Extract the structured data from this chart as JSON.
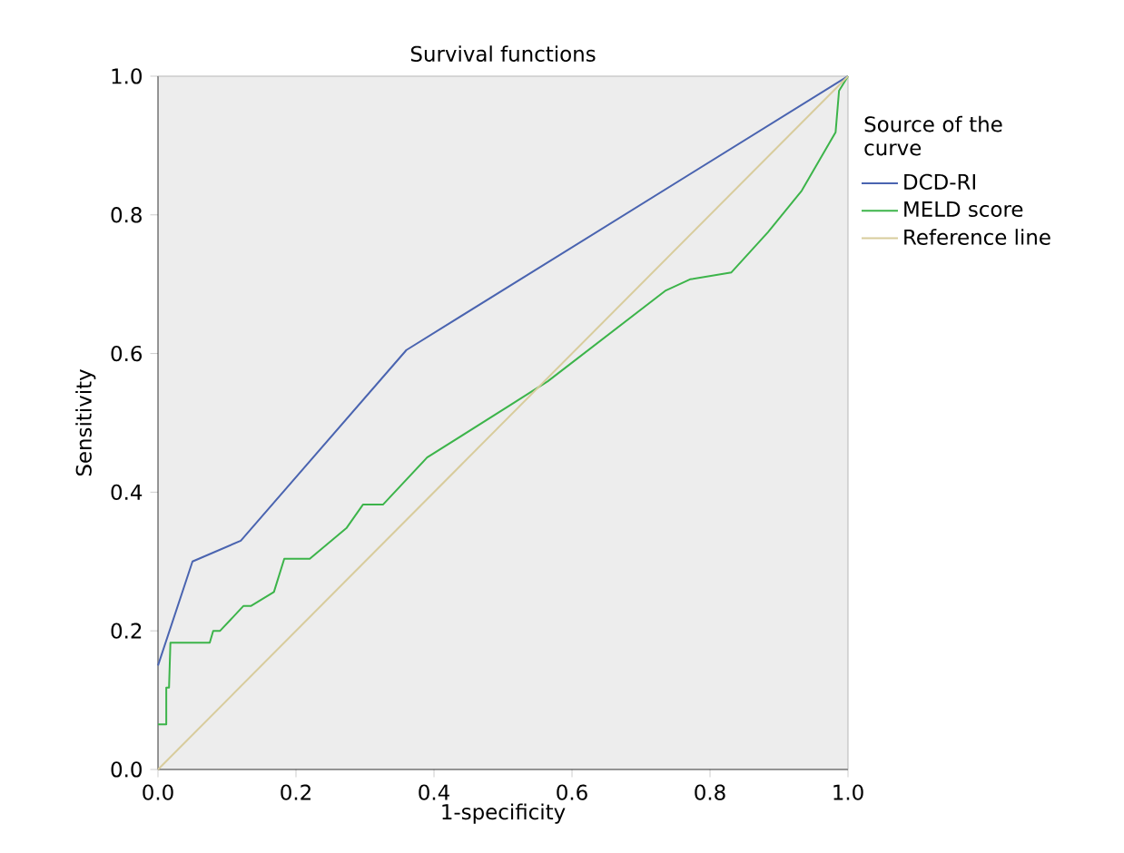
{
  "chart_data": {
    "type": "line",
    "title": "Survival functions",
    "xlabel": "1-specificity",
    "ylabel": "Sensitivity",
    "legend_title": "Source of the curve",
    "legend": "right",
    "marker": "none",
    "line_style": "solid",
    "xlim": [
      0,
      1
    ],
    "ylim": [
      0,
      1
    ],
    "xticks": [
      {
        "value": 0,
        "label": "0.0"
      },
      {
        "value": 0.2,
        "label": "0.2"
      },
      {
        "value": 0.4,
        "label": "0.4"
      },
      {
        "value": 0.6,
        "label": "0.6"
      },
      {
        "value": 0.8,
        "label": "0.8"
      },
      {
        "value": 1,
        "label": "1.0"
      }
    ],
    "yticks": [
      {
        "value": 0,
        "label": "0.0"
      },
      {
        "value": 0.2,
        "label": "0.2"
      },
      {
        "value": 0.4,
        "label": "0.4"
      },
      {
        "value": 0.6,
        "label": "0.6"
      },
      {
        "value": 0.8,
        "label": "0.8"
      },
      {
        "value": 1,
        "label": "1.0"
      }
    ],
    "series": [
      {
        "name": "DCD-RI",
        "color": "#4a64b0",
        "x": [
          0,
          0.05,
          0.12,
          0.36,
          1
        ],
        "values": [
          0.15,
          0.3,
          0.33,
          0.605,
          1
        ]
      },
      {
        "name": "MELD score",
        "color": "#3cb44a",
        "x": [
          0,
          0.012,
          0.012,
          0.016,
          0.018,
          0.075,
          0.08,
          0.09,
          0.124,
          0.135,
          0.168,
          0.183,
          0.22,
          0.273,
          0.297,
          0.326,
          0.39,
          0.508,
          0.565,
          0.736,
          0.771,
          0.831,
          0.884,
          0.933,
          0.982,
          0.987,
          1
        ],
        "values": [
          0.065,
          0.065,
          0.118,
          0.118,
          0.183,
          0.183,
          0.2,
          0.2,
          0.236,
          0.236,
          0.256,
          0.304,
          0.304,
          0.348,
          0.382,
          0.382,
          0.45,
          0.524,
          0.56,
          0.691,
          0.707,
          0.717,
          0.775,
          0.835,
          0.919,
          0.979,
          1
        ]
      },
      {
        "name": "Reference line",
        "color": "#d8cc9c",
        "x": [
          0,
          1
        ],
        "values": [
          0,
          1
        ]
      }
    ]
  }
}
